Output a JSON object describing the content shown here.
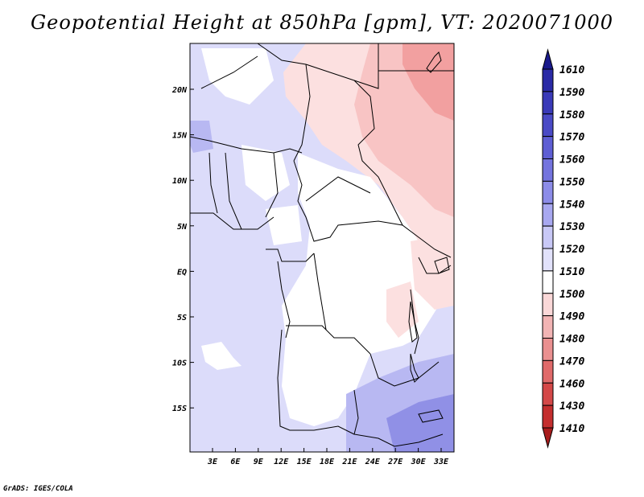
{
  "title": "Geopotential Height at 850hPa [gpm], VT: 2020071000",
  "footer": "GrADS: IGES/COLA",
  "map": {
    "lon_labels": [
      "3E",
      "6E",
      "9E",
      "12E",
      "15E",
      "18E",
      "21E",
      "24E",
      "27E",
      "30E",
      "33E"
    ],
    "lat_labels": [
      "20N",
      "15N",
      "10N",
      "5N",
      "EQ",
      "5S",
      "10S",
      "15S"
    ]
  },
  "colorbar": {
    "labels": [
      "1610",
      "1590",
      "1580",
      "1570",
      "1560",
      "1550",
      "1540",
      "1530",
      "1520",
      "1510",
      "1500",
      "1490",
      "1480",
      "1470",
      "1460",
      "1430",
      "1410"
    ],
    "colors": [
      "#1a1a8c",
      "#2a2aa6",
      "#3a3ab8",
      "#4a4ac6",
      "#5e5ed4",
      "#7474de",
      "#8c8ce8",
      "#a8a8f0",
      "#c8c8f6",
      "#e2e2fb",
      "#ffffff",
      "#fad8d8",
      "#f2b4b4",
      "#ea9090",
      "#e06a6a",
      "#d44848",
      "#c42e2e",
      "#a81c1c"
    ]
  },
  "colors": {
    "blue_light": "#dcdcfa",
    "blue_mid": "#b8b8f2",
    "blue_deep": "#9090e6",
    "pink_light": "#fce0e0",
    "pink_mid": "#f8c4c4",
    "pink_deep": "#f2a0a0"
  }
}
